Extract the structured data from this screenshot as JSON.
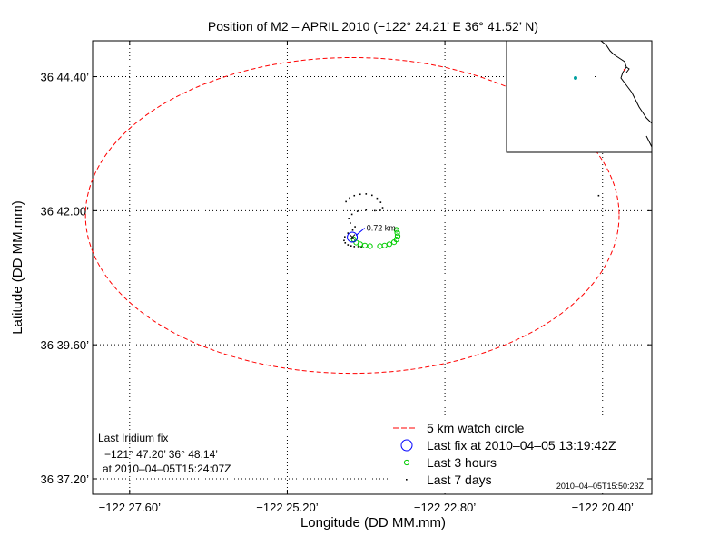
{
  "chart_data": {
    "type": "scatter",
    "title": "Position of M2 – APRIL 2010 (−122° 24.21’ E  36° 41.52’ N)",
    "xlabel": "Longitude (DD MM.mm)",
    "ylabel": "Latitude (DD MM.mm)",
    "xlim": [
      -122.4694,
      -122.3275
    ],
    "ylim": [
      36.6154,
      36.7507
    ],
    "xticks": [
      {
        "value": -122.46,
        "label": "−122 27.60’"
      },
      {
        "value": -122.42,
        "label": "−122 25.20’"
      },
      {
        "value": -122.38,
        "label": "−122 22.80’"
      },
      {
        "value": -122.34,
        "label": "−122 20.40’"
      }
    ],
    "yticks": [
      {
        "value": 36.62,
        "label": "36 37.20’"
      },
      {
        "value": 36.66,
        "label": "36 39.60’"
      },
      {
        "value": 36.7,
        "label": "36 42.00’"
      },
      {
        "value": 36.74,
        "label": "36 44.40’"
      }
    ],
    "grid": true,
    "legend_position": "bottom-right",
    "colors": {
      "watch_circle": "#ff0000",
      "last_fix": "#0000ff",
      "last_3_hours": "#00cc00",
      "last_7_days": "#000000",
      "annotation": "#0000ff",
      "grid": "#000000"
    },
    "series": [
      {
        "name": "5 km watch circle",
        "style": "dashed-line",
        "center": [
          -122.4035,
          36.6986
        ],
        "radius_km": 5,
        "x_radius_deg": 0.0677,
        "y_radius_deg": 0.0471
      },
      {
        "name": "Last fix at 2010–04–05 13:19:42Z",
        "style": "open-circle-large",
        "x": [
          -122.4035
        ],
        "y": [
          36.6921
        ]
      },
      {
        "name": "Last 3 hours",
        "style": "open-circle-small",
        "x": [
          -122.4031,
          -122.4025,
          -122.4015,
          -122.4003,
          -122.399,
          -122.3965,
          -122.3953,
          -122.3941,
          -122.3929,
          -122.3923,
          -122.392,
          -122.3921,
          -122.3923
        ],
        "y": [
          36.6914,
          36.6905,
          36.69,
          36.6896,
          36.6894,
          36.6894,
          36.6896,
          36.69,
          36.6906,
          36.6914,
          36.6924,
          36.6934,
          36.6943
        ]
      },
      {
        "name": "Last 7 days",
        "style": "dot",
        "x": [
          -122.4051,
          -122.4042,
          -122.403,
          -122.4015,
          -122.4,
          -122.3985,
          -122.3972,
          -122.3963,
          -122.3958,
          -122.3964,
          -122.3978,
          -122.4,
          -122.4022,
          -122.4036,
          -122.4044,
          -122.404,
          -122.4028,
          -122.4034,
          -122.4046,
          -122.4054,
          -122.4056,
          -122.4053,
          -122.4046,
          -122.4038,
          -122.403,
          -122.402,
          -122.4012,
          -122.341
        ],
        "y": [
          36.7027,
          36.7038,
          36.7045,
          36.7049,
          36.705,
          36.7046,
          36.7037,
          36.7025,
          36.7009,
          36.7001,
          36.7,
          36.7002,
          36.6998,
          36.6989,
          36.6977,
          36.6963,
          36.6952,
          36.6942,
          36.6933,
          36.6922,
          36.6911,
          36.6904,
          36.6898,
          36.6895,
          36.6893,
          36.6893,
          36.6892,
          36.7045
        ]
      }
    ],
    "annotations": [
      {
        "text": "0.72 km",
        "x": -122.3999,
        "y": 36.694
      },
      {
        "text": "Last Iridium fix",
        "corner": "bottom-left",
        "line": 1
      },
      {
        "text": "−121° 47.20’   36° 48.14’",
        "corner": "bottom-left",
        "line": 2
      },
      {
        "text": "at 2010–04–05T15:24:07Z",
        "corner": "bottom-left",
        "line": 3
      },
      {
        "text": "2010–04–05T15:50:23Z",
        "corner": "bottom-right",
        "line": 0
      }
    ],
    "inset": {
      "type": "map",
      "description_colors": {
        "coast": "#000000",
        "mooring": "#00a0a0",
        "marker": "#ff0000"
      }
    }
  }
}
